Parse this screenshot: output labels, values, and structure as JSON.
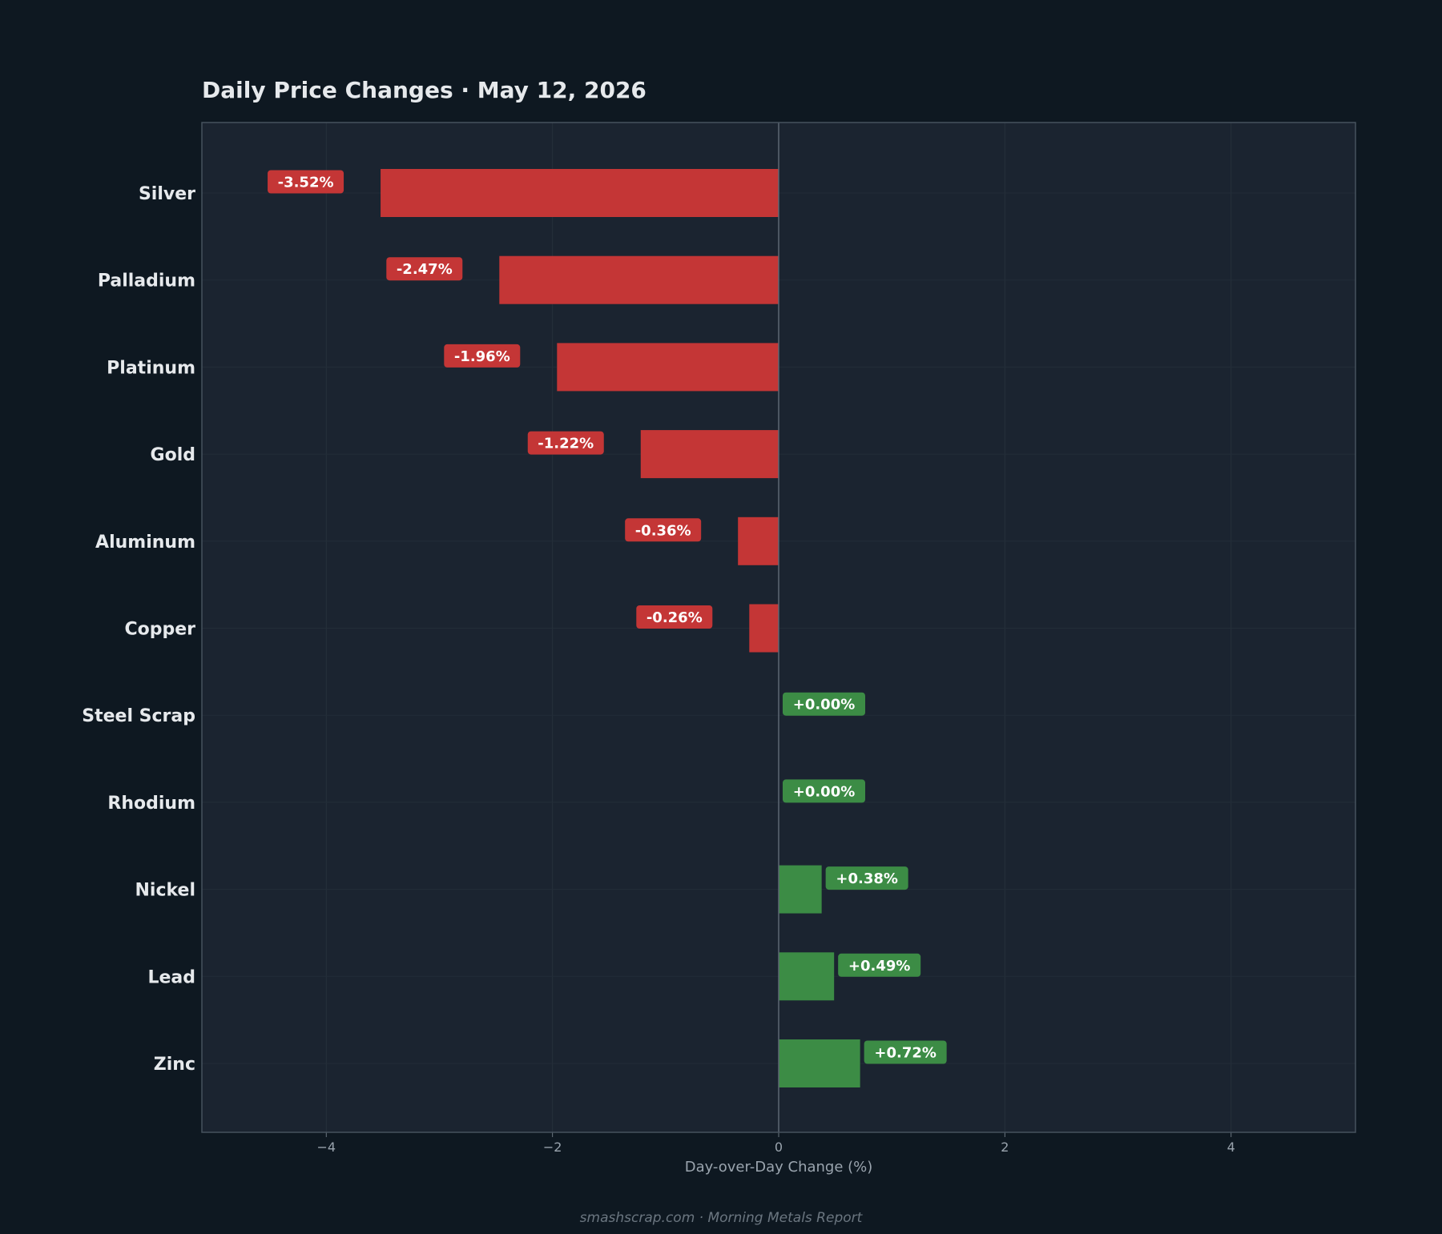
{
  "chart_data": {
    "type": "bar",
    "orientation": "horizontal",
    "title": "Daily Price Changes  ·  May 12, 2026",
    "xlabel": "Day-over-Day Change (%)",
    "ylabel": "",
    "xlim": [
      -5.1,
      5.1
    ],
    "xticks": [
      -4,
      -2,
      0,
      2,
      4
    ],
    "xtick_labels": [
      "−4",
      "−2",
      "0",
      "2",
      "4"
    ],
    "categories": [
      "Silver",
      "Palladium",
      "Platinum",
      "Gold",
      "Aluminum",
      "Copper",
      "Steel Scrap",
      "Rhodium",
      "Nickel",
      "Lead",
      "Zinc"
    ],
    "values": [
      -3.52,
      -2.47,
      -1.96,
      -1.22,
      -0.36,
      -0.26,
      0.0,
      0.0,
      0.38,
      0.49,
      0.72
    ],
    "value_labels": [
      "-3.52%",
      "-2.47%",
      "-1.96%",
      "-1.22%",
      "-0.36%",
      "-0.26%",
      "+0.00%",
      "+0.00%",
      "+0.38%",
      "+0.49%",
      "+0.72%"
    ],
    "grid": true,
    "colors": {
      "negative": "#c43636",
      "positive": "#3c8c45",
      "background": "#0e1821",
      "plot_background": "#1b2430"
    }
  },
  "footer": "smashscrap.com  ·  Morning Metals Report"
}
